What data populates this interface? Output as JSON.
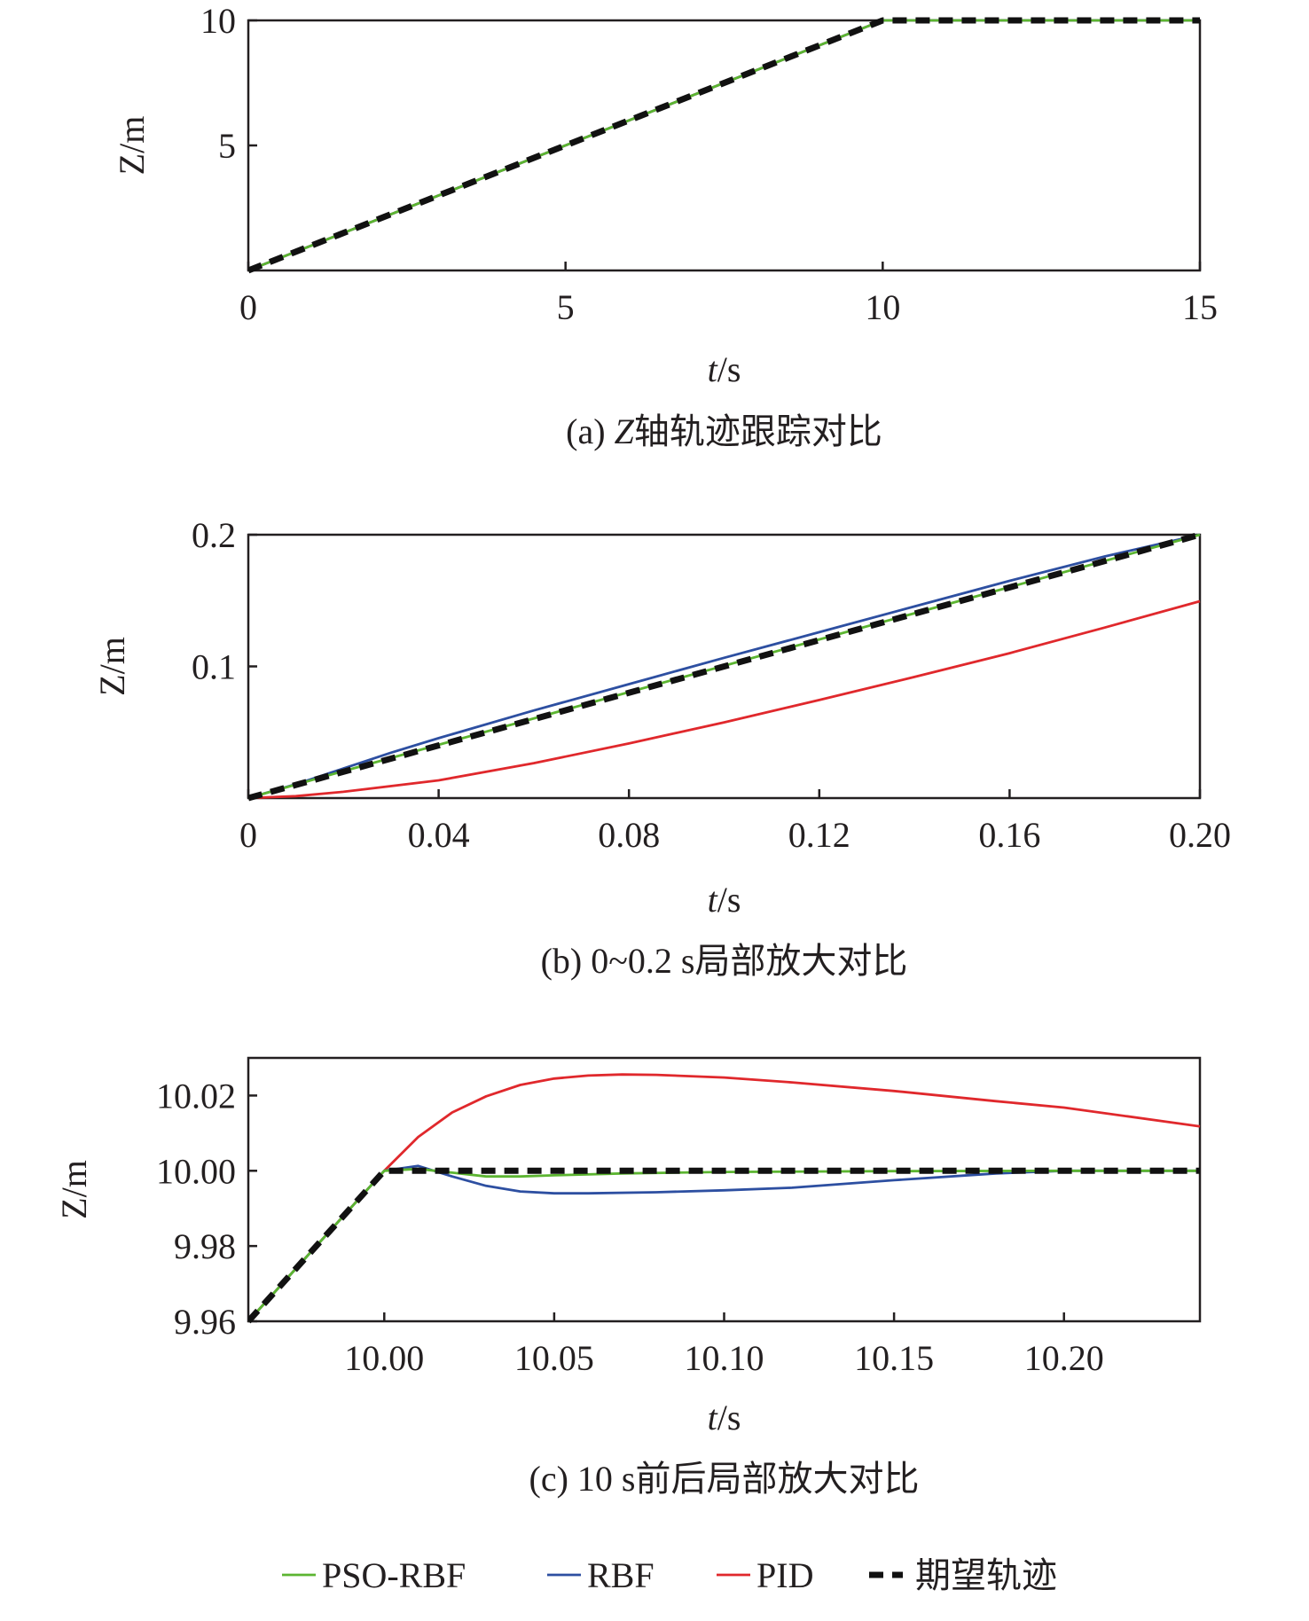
{
  "series_styles": [
    {
      "name": "PSO-RBF",
      "color": "#5cb531",
      "dash": ""
    },
    {
      "name": "RBF",
      "color": "#2d4fa1",
      "dash": ""
    },
    {
      "name": "PID",
      "color": "#e0282c",
      "dash": ""
    },
    {
      "name": "期望轨迹",
      "color": "#111111",
      "dash": "16 10"
    }
  ],
  "chart_data": [
    {
      "type": "line",
      "caption": "(a) Z轴轨迹跟踪对比",
      "xlabel": "t/s",
      "ylabel": "Z/m",
      "xlim": [
        0,
        15
      ],
      "ylim": [
        0,
        10
      ],
      "xticks": [
        {
          "v": 0,
          "label": "0"
        },
        {
          "v": 5,
          "label": "5"
        },
        {
          "v": 10,
          "label": "10"
        },
        {
          "v": 15,
          "label": "15"
        }
      ],
      "yticks": [
        {
          "v": 5,
          "label": "5"
        },
        {
          "v": 10,
          "label": "10"
        }
      ],
      "series": [
        {
          "name": "PSO-RBF",
          "x": [
            0,
            10,
            15
          ],
          "y": [
            0,
            10,
            10
          ]
        },
        {
          "name": "RBF",
          "x": [
            0,
            10,
            15
          ],
          "y": [
            0,
            10,
            10
          ]
        },
        {
          "name": "PID",
          "x": [
            0,
            10,
            15
          ],
          "y": [
            0,
            10,
            10
          ]
        },
        {
          "name": "期望轨迹",
          "x": [
            0,
            10,
            15
          ],
          "y": [
            0,
            10,
            10
          ]
        }
      ]
    },
    {
      "type": "line",
      "caption": "(b) 0~0.2 s局部放大对比",
      "xlabel": "t/s",
      "ylabel": "Z/m",
      "xlim": [
        0,
        0.2
      ],
      "ylim": [
        0,
        0.2
      ],
      "xticks": [
        {
          "v": 0,
          "label": "0"
        },
        {
          "v": 0.04,
          "label": "0.04"
        },
        {
          "v": 0.08,
          "label": "0.08"
        },
        {
          "v": 0.12,
          "label": "0.12"
        },
        {
          "v": 0.16,
          "label": "0.16"
        },
        {
          "v": 0.2,
          "label": "0.20"
        }
      ],
      "yticks": [
        {
          "v": 0.1,
          "label": "0.1"
        },
        {
          "v": 0.2,
          "label": "0.2"
        }
      ],
      "series": [
        {
          "name": "PSO-RBF",
          "x": [
            0,
            0.02,
            0.04,
            0.08,
            0.12,
            0.16,
            0.2
          ],
          "y": [
            0,
            0.0205,
            0.0405,
            0.0805,
            0.1205,
            0.1602,
            0.2
          ]
        },
        {
          "name": "RBF",
          "x": [
            0,
            0.01,
            0.02,
            0.03,
            0.04,
            0.06,
            0.08,
            0.1,
            0.12,
            0.14,
            0.16,
            0.18,
            0.2
          ],
          "y": [
            0,
            0.0105,
            0.0225,
            0.0345,
            0.0455,
            0.0665,
            0.0865,
            0.1065,
            0.126,
            0.1455,
            0.165,
            0.1835,
            0.2
          ]
        },
        {
          "name": "PID",
          "x": [
            0,
            0.01,
            0.02,
            0.04,
            0.06,
            0.08,
            0.1,
            0.12,
            0.14,
            0.16,
            0.18,
            0.2
          ],
          "y": [
            0,
            0.0015,
            0.0048,
            0.0135,
            0.0265,
            0.0415,
            0.0575,
            0.0745,
            0.092,
            0.11,
            0.1295,
            0.1495
          ]
        },
        {
          "name": "期望轨迹",
          "x": [
            0,
            0.2
          ],
          "y": [
            0,
            0.2
          ]
        }
      ]
    },
    {
      "type": "line",
      "caption": "(c) 10 s前后局部放大对比",
      "xlabel": "t/s",
      "ylabel": "Z/m",
      "xlim": [
        9.96,
        10.24
      ],
      "ylim": [
        9.96,
        10.03
      ],
      "xticks": [
        {
          "v": 10.0,
          "label": "10.00"
        },
        {
          "v": 10.05,
          "label": "10.05"
        },
        {
          "v": 10.1,
          "label": "10.10"
        },
        {
          "v": 10.15,
          "label": "10.15"
        },
        {
          "v": 10.2,
          "label": "10.20"
        }
      ],
      "yticks": [
        {
          "v": 9.96,
          "label": "9.96"
        },
        {
          "v": 9.98,
          "label": "9.98"
        },
        {
          "v": 10.0,
          "label": "10.00"
        },
        {
          "v": 10.02,
          "label": "10.02"
        }
      ],
      "series": [
        {
          "name": "PSO-RBF",
          "x": [
            9.96,
            10.0,
            10.01,
            10.02,
            10.03,
            10.04,
            10.05,
            10.07,
            10.1,
            10.15,
            10.2,
            10.24
          ],
          "y": [
            9.96,
            10.0,
            10.0005,
            9.9995,
            9.9985,
            9.9985,
            9.9988,
            9.9993,
            9.9997,
            9.9999,
            10.0,
            10.0
          ]
        },
        {
          "name": "RBF",
          "x": [
            9.96,
            10.0,
            10.01,
            10.02,
            10.03,
            10.04,
            10.05,
            10.06,
            10.08,
            10.1,
            10.12,
            10.15,
            10.18,
            10.2,
            10.24
          ],
          "y": [
            9.96,
            10.0,
            10.0013,
            9.9985,
            9.996,
            9.9945,
            9.994,
            9.994,
            9.9943,
            9.9948,
            9.9955,
            9.9975,
            9.9993,
            10.0,
            10.0
          ]
        },
        {
          "name": "PID",
          "x": [
            9.96,
            9.98,
            10.0,
            10.01,
            10.02,
            10.03,
            10.04,
            10.05,
            10.06,
            10.07,
            10.08,
            10.1,
            10.12,
            10.15,
            10.18,
            10.2,
            10.24
          ],
          "y": [
            9.96,
            9.98,
            10.0,
            10.009,
            10.0155,
            10.0198,
            10.0228,
            10.0245,
            10.0253,
            10.0256,
            10.0255,
            10.0248,
            10.0235,
            10.0212,
            10.0185,
            10.0168,
            10.0118
          ]
        },
        {
          "name": "期望轨迹",
          "x": [
            9.96,
            10.0,
            10.24
          ],
          "y": [
            9.96,
            10.0,
            10.0
          ]
        }
      ]
    }
  ]
}
